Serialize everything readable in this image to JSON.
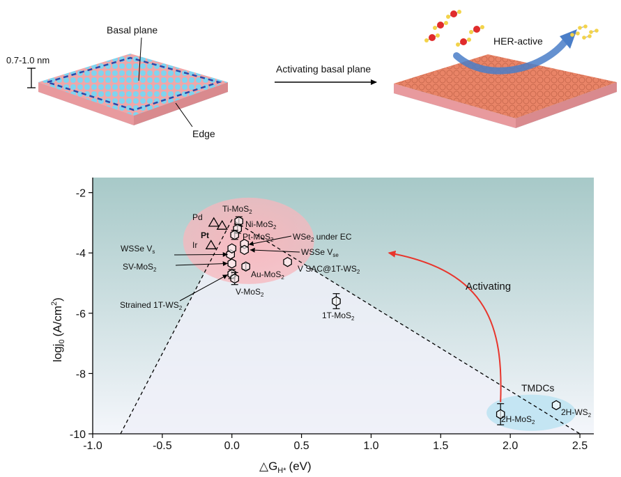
{
  "top_panel": {
    "basal_plane_label": "Basal plane",
    "thickness_label": "0.7-1.0 nm",
    "edge_label": "Edge",
    "arrow_label": "Activating basal plane",
    "her_label": "HER-active",
    "colors": {
      "sulfur": "#7fd4ef",
      "metal_pristine": "#f0a6a8",
      "metal_active": "#e98467",
      "oxygen": "#e02c2c",
      "hydrogen": "#f3d34a",
      "edge_dash": "#2d48a8",
      "her_arrow": "#4a7ec8"
    }
  },
  "chart_data": {
    "type": "scatter",
    "xlabel_main": "△G",
    "xlabel_sub": "H*",
    "xlabel_unit": "(eV)",
    "ylabel_main": "logj",
    "ylabel_sub": "0",
    "ylabel_unit": "(A/cm",
    "ylabel_sup": "2",
    "ylabel_close": ")",
    "xlim": [
      -1.0,
      2.6
    ],
    "ylim": [
      -10,
      -1.5
    ],
    "xticks": [
      -1.0,
      -0.5,
      0.0,
      0.5,
      1.0,
      1.5,
      2.0,
      2.5
    ],
    "xtick_labels": [
      "-1.0",
      "-0.5",
      "0.0",
      "0.5",
      "1.0",
      "1.5",
      "2.0",
      "2.5"
    ],
    "yticks": [
      -10,
      -8,
      -6,
      -4,
      -2
    ],
    "ytick_labels": [
      "-10",
      "-8",
      "-6",
      "-4",
      "-2"
    ],
    "volcano_line": [
      [
        -0.8,
        -10.0
      ],
      [
        0.0,
        -2.9
      ],
      [
        2.5,
        -10.0
      ]
    ],
    "colors": {
      "background_top": "#a7c9c8",
      "background_bottom": "#f4f6fb",
      "highlight_ellipse": "#f7b7bd",
      "tmdc_ellipse": "#bfe3f2",
      "activating_arrow": "#e8352c"
    },
    "metals": [
      {
        "label": "Pd",
        "x": -0.13,
        "y": -3.0
      },
      {
        "label": "Pt",
        "x": -0.07,
        "y": -3.1
      },
      {
        "label": "Ir",
        "x": -0.15,
        "y": -3.75
      }
    ],
    "points": [
      {
        "label": "Ti-MoS",
        "sub": "2",
        "x": 0.05,
        "y": -2.95,
        "err": 0.15
      },
      {
        "label": "Ni-MoS",
        "sub": "2",
        "x": 0.04,
        "y": -3.2,
        "err": 0.15
      },
      {
        "label": "Pt-MoS",
        "sub": "2",
        "x": 0.02,
        "y": -3.4,
        "err": 0.15
      },
      {
        "label": "WSe",
        "sub": "2",
        "label2": " under EC",
        "x": 0.09,
        "y": -3.7,
        "err": 0.0
      },
      {
        "label": "WSSe V",
        "sub": "se",
        "x": 0.09,
        "y": -3.9,
        "err": 0.0
      },
      {
        "label": "WSSe V",
        "sub": "s",
        "x": -0.01,
        "y": -4.05,
        "err": 0.0
      },
      {
        "label": "",
        "x": 0.0,
        "y": -3.85,
        "err": 0.0
      },
      {
        "label": "SV-MoS",
        "sub": "2",
        "x": 0.0,
        "y": -4.35,
        "err": 0.0
      },
      {
        "label": "Au-MoS",
        "sub": "2",
        "x": 0.1,
        "y": -4.45,
        "err": 0.1
      },
      {
        "label": "Strained 1T-WS",
        "sub": "2",
        "x": 0.0,
        "y": -4.7,
        "err": 0.15
      },
      {
        "label": "V-MoS",
        "sub": "2",
        "x": 0.02,
        "y": -4.85,
        "err": 0.2
      },
      {
        "label": "V SAC@1T-WS",
        "sub": "2",
        "x": 0.4,
        "y": -4.3,
        "err": 0.0
      },
      {
        "label": "1T-MoS",
        "sub": "2",
        "x": 0.75,
        "y": -5.6,
        "err": 0.25
      },
      {
        "label": "2H-MoS",
        "sub": "2",
        "x": 1.93,
        "y": -9.35,
        "err": 0.35
      },
      {
        "label": "2H-WS",
        "sub": "2",
        "x": 2.33,
        "y": -9.05,
        "err": 0.0
      }
    ],
    "annotations": {
      "activating": "Activating",
      "tmdcs": "TMDCs"
    }
  }
}
